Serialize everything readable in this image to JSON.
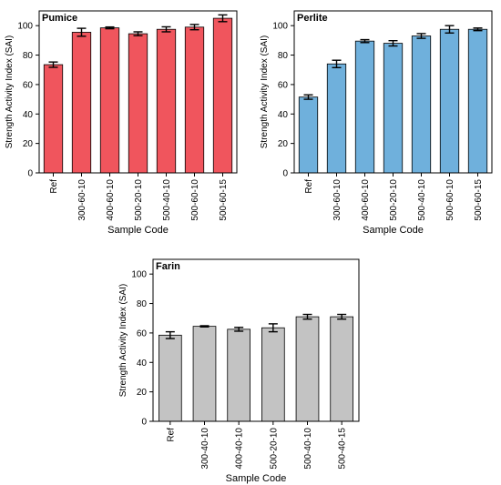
{
  "chart_data": [
    {
      "type": "bar",
      "panel_label": "Pumice",
      "ylabel": "Strength Activity Index (SAI)",
      "xlabel": "Sample Code",
      "ylim": [
        0,
        110
      ],
      "yticks": [
        0,
        20,
        40,
        60,
        80,
        100
      ],
      "bar_color": "#f0555d",
      "categories": [
        "Ref",
        "300-60-10",
        "400-60-10",
        "500-20-10",
        "500-40-10",
        "500-60-10",
        "500-60-15"
      ],
      "values": [
        73.5,
        95.5,
        98.5,
        94.5,
        97.5,
        99,
        105
      ],
      "errors": [
        1.8,
        2.7,
        0.6,
        1.3,
        1.7,
        1.8,
        2.3
      ]
    },
    {
      "type": "bar",
      "panel_label": "Perlite",
      "ylabel": "Strength Activity Index (SAI)",
      "xlabel": "Sample Code",
      "ylim": [
        0,
        110
      ],
      "yticks": [
        0,
        20,
        40,
        60,
        80,
        100
      ],
      "bar_color": "#6fb0dc",
      "categories": [
        "Ref",
        "300-60-10",
        "400-60-10",
        "500-20-10",
        "500-40-10",
        "500-60-10",
        "500-60-15"
      ],
      "values": [
        51.5,
        74,
        89.5,
        88,
        93,
        97.5,
        97.5
      ],
      "errors": [
        1.5,
        2.5,
        1.0,
        1.8,
        1.6,
        2.5,
        0.9
      ]
    },
    {
      "type": "bar",
      "panel_label": "Farin",
      "ylabel": "Strength Activity Index (SAI)",
      "xlabel": "Sample Code",
      "ylim": [
        0,
        110
      ],
      "yticks": [
        0,
        20,
        40,
        60,
        80,
        100
      ],
      "bar_color": "#c3c3c3",
      "categories": [
        "Ref",
        "300-40-10",
        "400-40-10",
        "500-20-10",
        "500-40-10",
        "500-40-15"
      ],
      "values": [
        58.5,
        64.5,
        62.5,
        63.5,
        71,
        71
      ],
      "errors": [
        2.3,
        0.4,
        1.3,
        2.7,
        1.6,
        1.6
      ]
    }
  ]
}
